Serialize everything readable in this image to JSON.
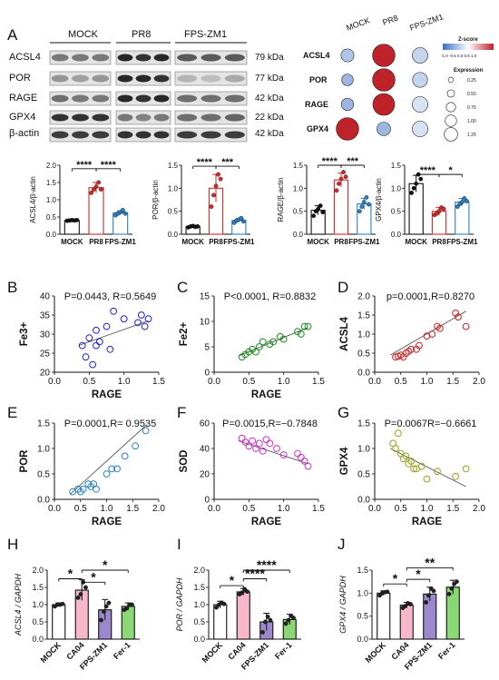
{
  "panel_letters": [
    "A",
    "B",
    "C",
    "D",
    "E",
    "F",
    "G",
    "H",
    "I",
    "J"
  ],
  "blot": {
    "groups": [
      "MOCK",
      "PR8",
      "FPS-ZM1"
    ],
    "proteins": [
      "ACSL4",
      "POR",
      "RAGE",
      "GPX4",
      "β-actin"
    ],
    "kda": [
      "79 kDa",
      "77 kDa",
      "42 kDa",
      "22 kDa",
      "42 kDa"
    ]
  },
  "dotplot": {
    "columns": [
      "MOCK",
      "PR8",
      "FPS-ZM1"
    ],
    "rows": [
      "ACSL4",
      "POR",
      "RAGE",
      "GPX4"
    ],
    "zscore_title": "Z-score",
    "zscore_ticks": "-1.0 -0.5 0.0 0.5 1.0",
    "expression_title": "Expression",
    "expression_levels": [
      "0.25",
      "0.50",
      "0.75",
      "1.00",
      "1.25"
    ],
    "expression_values": [
      [
        0.55,
        1.25,
        0.75
      ],
      [
        0.45,
        1.25,
        0.7
      ],
      [
        0.5,
        1.2,
        0.75
      ],
      [
        1.25,
        0.6,
        0.75
      ]
    ],
    "zscore_values": [
      [
        -0.4,
        1.0,
        -0.3
      ],
      [
        -0.5,
        1.0,
        -0.3
      ],
      [
        -0.5,
        1.0,
        -0.2
      ],
      [
        1.0,
        -0.5,
        -0.2
      ]
    ],
    "colors": {
      "low": "#3a6fc4",
      "mid": "#ffffff",
      "high": "#c0222a"
    }
  },
  "chart_data": [
    {
      "type": "bar",
      "id": "acsl4_wb",
      "categories": [
        "MOCK",
        "PR8",
        "FPS-ZM1"
      ],
      "values": [
        0.4,
        1.35,
        0.62
      ],
      "errors": [
        0.02,
        0.15,
        0.06
      ],
      "points": [
        [
          0.39,
          0.4,
          0.41,
          0.4,
          0.41
        ],
        [
          1.2,
          1.3,
          1.38,
          1.5,
          1.3
        ],
        [
          0.55,
          0.6,
          0.64,
          0.7,
          0.6
        ]
      ],
      "ylabel": "ACSL4/β-actin",
      "ylim": [
        0,
        2.0
      ],
      "yticks": [
        "0.0",
        "0.5",
        "1.0",
        "1.5",
        "2.0"
      ],
      "significance": [
        "****",
        "****"
      ]
    },
    {
      "type": "bar",
      "id": "por_wb",
      "categories": [
        "MOCK",
        "PR8",
        "FPS-ZM1"
      ],
      "values": [
        0.17,
        1.0,
        0.3
      ],
      "errors": [
        0.02,
        0.3,
        0.04
      ],
      "points": [
        [
          0.15,
          0.17,
          0.18,
          0.16,
          0.17
        ],
        [
          0.6,
          0.85,
          1.05,
          1.3,
          1.2
        ],
        [
          0.25,
          0.3,
          0.32,
          0.35,
          0.28
        ]
      ],
      "ylabel": "POR/β-actin",
      "ylim": [
        0,
        1.5
      ],
      "yticks": [
        "0.0",
        "0.5",
        "1.0",
        "1.5"
      ],
      "significance": [
        "****",
        "***"
      ]
    },
    {
      "type": "bar",
      "id": "rage_wb",
      "categories": [
        "MOCK",
        "PR8",
        "FPS-ZM1"
      ],
      "values": [
        0.52,
        1.18,
        0.66
      ],
      "errors": [
        0.1,
        0.15,
        0.12
      ],
      "points": [
        [
          0.4,
          0.5,
          0.55,
          0.62,
          0.48
        ],
        [
          0.95,
          1.1,
          1.2,
          1.35,
          1.25
        ],
        [
          0.5,
          0.6,
          0.7,
          0.8,
          0.65
        ]
      ],
      "ylabel": "RAGE/β-actin",
      "ylim": [
        0,
        1.5
      ],
      "yticks": [
        "0.0",
        "0.5",
        "1.0",
        "1.5"
      ],
      "significance": [
        "****",
        "***"
      ]
    },
    {
      "type": "bar",
      "id": "gpx4_wb",
      "categories": [
        "MOCK",
        "PR8",
        "FPS-ZM1"
      ],
      "values": [
        1.1,
        0.5,
        0.7
      ],
      "errors": [
        0.18,
        0.08,
        0.08
      ],
      "points": [
        [
          0.9,
          1.0,
          1.1,
          1.3,
          1.2
        ],
        [
          0.42,
          0.45,
          0.5,
          0.58,
          0.55
        ],
        [
          0.6,
          0.66,
          0.7,
          0.78,
          0.72
        ]
      ],
      "ylabel": "GPX4/β-actin",
      "ylim": [
        0,
        1.5
      ],
      "yticks": [
        "0.0",
        "0.5",
        "1.0",
        "1.5"
      ],
      "significance": [
        "****",
        "*"
      ]
    },
    {
      "type": "scatter",
      "id": "B",
      "xlabel": "RAGE",
      "ylabel": "Fe3+",
      "annotation": "P=0.0443, R=0.5649",
      "xlim": [
        0,
        1.5
      ],
      "ylim": [
        20,
        40
      ],
      "xticks": [
        "0.0",
        "0.5",
        "1.0",
        "1.5"
      ],
      "yticks": [
        "20",
        "25",
        "30",
        "35",
        "40"
      ],
      "color": "#2020c8",
      "x": [
        0.4,
        0.45,
        0.5,
        0.55,
        0.6,
        0.6,
        0.65,
        0.75,
        0.8,
        0.85,
        1.0,
        1.2,
        1.25,
        1.3,
        1.35
      ],
      "y": [
        27,
        24,
        29,
        22,
        31,
        27,
        28,
        32,
        26,
        36,
        34,
        33,
        35,
        32,
        34
      ],
      "fit": [
        [
          0.35,
          27.0
        ],
        [
          1.35,
          33.5
        ]
      ]
    },
    {
      "type": "scatter",
      "id": "C",
      "xlabel": "RAGE",
      "ylabel": "Fe2+",
      "annotation": "P<0.0001, R=0.8832",
      "xlim": [
        0,
        1.5
      ],
      "ylim": [
        0,
        15
      ],
      "xticks": [
        "0.0",
        "0.5",
        "1.0",
        "1.5"
      ],
      "yticks": [
        "0",
        "5",
        "10",
        "15"
      ],
      "color": "#1f8c1f",
      "x": [
        0.4,
        0.45,
        0.5,
        0.55,
        0.6,
        0.65,
        0.7,
        0.8,
        0.85,
        0.95,
        1.0,
        1.2,
        1.25,
        1.3,
        1.35
      ],
      "y": [
        3,
        3.5,
        4,
        4.5,
        4,
        5,
        6,
        5.5,
        6,
        7,
        6.5,
        8,
        7.5,
        9,
        9
      ],
      "fit": [
        [
          0.35,
          3.2
        ],
        [
          1.35,
          8.8
        ]
      ]
    },
    {
      "type": "scatter",
      "id": "D",
      "xlabel": "",
      "ylabel": "ACSL4",
      "annotation": "p=0.0001,R=0.8270",
      "xlim": [
        0,
        2.0
      ],
      "ylim": [
        0,
        2.0
      ],
      "xticks": [
        "0.0",
        "0.5",
        "1.0",
        "1.5",
        "2.0"
      ],
      "yticks": [
        "0.0",
        "0.5",
        "1.0",
        "1.5",
        "2.0"
      ],
      "color": "#c82020",
      "x": [
        0.4,
        0.45,
        0.5,
        0.55,
        0.6,
        0.65,
        0.7,
        0.8,
        0.85,
        1.0,
        1.1,
        1.2,
        1.25,
        1.55,
        1.6,
        1.75
      ],
      "y": [
        0.4,
        0.42,
        0.45,
        0.4,
        0.5,
        0.55,
        0.6,
        0.6,
        0.7,
        0.95,
        1.0,
        1.2,
        1.15,
        1.55,
        1.45,
        1.2
      ],
      "fit": [
        [
          0.3,
          0.45
        ],
        [
          1.75,
          1.6
        ]
      ]
    },
    {
      "type": "scatter",
      "id": "E",
      "xlabel": "RAGE",
      "ylabel": "POR",
      "annotation": "P=0.0001,R= 0.9535",
      "xlim": [
        0,
        2.0
      ],
      "ylim": [
        0,
        1.5
      ],
      "xticks": [
        "0.0",
        "0.5",
        "1.0",
        "1.5",
        "2.0"
      ],
      "yticks": [
        "0.0",
        "0.5",
        "1.0",
        "1.5"
      ],
      "color": "#2a80c0",
      "x": [
        0.35,
        0.45,
        0.5,
        0.55,
        0.65,
        0.7,
        0.75,
        0.8,
        1.0,
        1.1,
        1.2,
        1.35,
        1.55,
        1.75
      ],
      "y": [
        0.15,
        0.2,
        0.15,
        0.2,
        0.3,
        0.25,
        0.3,
        0.2,
        0.5,
        0.6,
        0.6,
        0.85,
        1.05,
        1.35
      ],
      "fit": [
        [
          0.3,
          0.1
        ],
        [
          1.75,
          1.45
        ]
      ]
    },
    {
      "type": "scatter",
      "id": "F",
      "xlabel": "RAGE",
      "ylabel": "SOD",
      "annotation": "P=0.0015,R=−0.7848",
      "xlim": [
        0,
        1.5
      ],
      "ylim": [
        0,
        60
      ],
      "xticks": [
        "0.0",
        "0.5",
        "1.0",
        "1.5"
      ],
      "yticks": [
        "0",
        "20",
        "40",
        "60"
      ],
      "color": "#d030c8",
      "x": [
        0.4,
        0.45,
        0.5,
        0.55,
        0.6,
        0.65,
        0.7,
        0.75,
        0.8,
        0.9,
        1.0,
        1.2,
        1.25,
        1.3,
        1.35
      ],
      "y": [
        48,
        45,
        42,
        46,
        40,
        44,
        38,
        47,
        44,
        40,
        35,
        36,
        33,
        30,
        26
      ],
      "fit": [
        [
          0.35,
          46
        ],
        [
          1.35,
          28
        ]
      ]
    },
    {
      "type": "scatter",
      "id": "G",
      "xlabel": "RAGE",
      "ylabel": "GPX4",
      "annotation": "P=0.0067R=−0.6661",
      "xlim": [
        0,
        2.0
      ],
      "ylim": [
        0,
        1.5
      ],
      "xticks": [
        "0.0",
        "0.5",
        "1.0",
        "1.5",
        "2.0"
      ],
      "yticks": [
        "0.0",
        "0.5",
        "1.0",
        "1.5"
      ],
      "color": "#9aa020",
      "x": [
        0.35,
        0.4,
        0.45,
        0.5,
        0.55,
        0.6,
        0.65,
        0.7,
        0.75,
        0.8,
        0.9,
        1.0,
        1.2,
        1.55,
        1.75
      ],
      "y": [
        1.1,
        1.0,
        1.3,
        0.9,
        0.8,
        0.85,
        0.7,
        0.75,
        0.6,
        0.6,
        0.65,
        0.4,
        0.55,
        0.45,
        0.6
      ],
      "fit": [
        [
          0.3,
          1.0
        ],
        [
          1.75,
          0.25
        ]
      ]
    },
    {
      "type": "bar",
      "id": "H",
      "categories": [
        "MOCK",
        "CA04",
        "FPS-ZM1",
        "Fer-1"
      ],
      "values": [
        1.0,
        1.42,
        0.85,
        0.95
      ],
      "errors": [
        0.05,
        0.3,
        0.3,
        0.1
      ],
      "points": [
        [
          0.95,
          1.0,
          1.0,
          1.02
        ],
        [
          1.2,
          1.3,
          1.65,
          1.5
        ],
        [
          0.55,
          0.8,
          0.95,
          1.05
        ],
        [
          0.85,
          0.9,
          1.0,
          1.0
        ]
      ],
      "ylabel": "ACSL4 / GAPDH",
      "ylim": [
        0,
        2.0
      ],
      "yticks": [
        "0.0",
        "0.5",
        "1.0",
        "1.5",
        "2.0"
      ],
      "colors": [
        "#ffffff",
        "#f8b8cc",
        "#9c88cc",
        "#8ad873"
      ],
      "significance": [
        "*",
        "*",
        "*"
      ]
    },
    {
      "type": "bar",
      "id": "I",
      "categories": [
        "MOCK",
        "CA04",
        "FPS-ZM1",
        "Fer-1"
      ],
      "values": [
        1.0,
        1.37,
        0.5,
        0.57
      ],
      "errors": [
        0.1,
        0.1,
        0.25,
        0.15
      ],
      "points": [
        [
          0.92,
          1.0,
          1.05,
          1.02
        ],
        [
          1.3,
          1.35,
          1.45,
          1.38
        ],
        [
          0.2,
          0.5,
          0.65,
          0.55
        ],
        [
          0.45,
          0.55,
          0.68,
          0.62
        ]
      ],
      "ylabel": "POR / GAPDH",
      "ylim": [
        0,
        2.0
      ],
      "yticks": [
        "0.0",
        "0.5",
        "1.0",
        "1.5",
        "2.0"
      ],
      "colors": [
        "#ffffff",
        "#f8b8cc",
        "#9c88cc",
        "#8ad873"
      ],
      "significance": [
        "*",
        "****",
        "****"
      ]
    },
    {
      "type": "bar",
      "id": "J",
      "categories": [
        "MOCK",
        "CA04",
        "FPS-ZM1",
        "Fer-1"
      ],
      "values": [
        1.0,
        0.74,
        0.98,
        1.13
      ],
      "errors": [
        0.05,
        0.06,
        0.15,
        0.15
      ],
      "points": [
        [
          0.95,
          1.0,
          1.02,
          1.03
        ],
        [
          0.68,
          0.72,
          0.78,
          0.76
        ],
        [
          0.8,
          0.95,
          1.1,
          1.05
        ],
        [
          0.98,
          1.1,
          1.2,
          1.25
        ]
      ],
      "ylabel": "GPX4 / GAPDH",
      "ylim": [
        0,
        1.5
      ],
      "yticks": [
        "0.0",
        "0.5",
        "1.0",
        "1.5"
      ],
      "colors": [
        "#ffffff",
        "#f8b8cc",
        "#9c88cc",
        "#8ad873"
      ],
      "significance": [
        "*",
        "*",
        "**"
      ]
    }
  ]
}
